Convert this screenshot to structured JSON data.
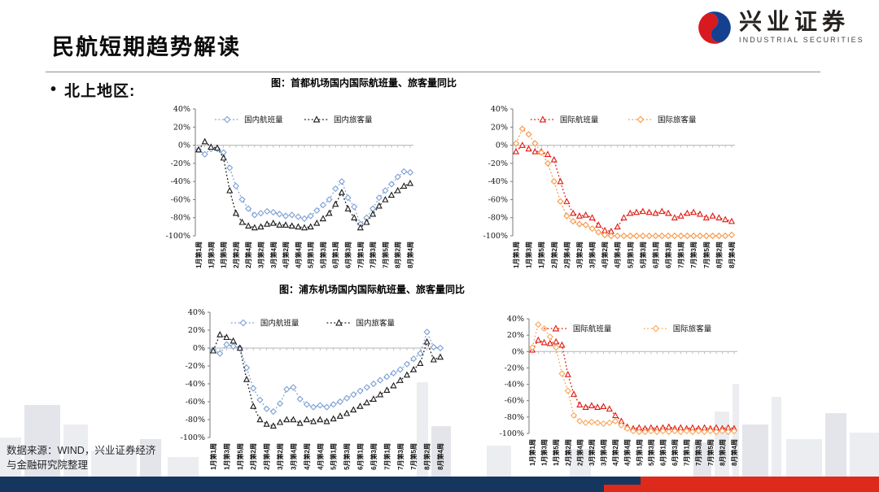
{
  "page": {
    "title": "民航短期趋势解读",
    "bullet": "北上地区:",
    "source_line1": "数据来源：WIND，兴业证券经济",
    "source_line2": "与金融研究院整理"
  },
  "logo": {
    "cn": "兴业证券",
    "en": "INDUSTRIAL SECURITIES",
    "swirl_red": "#d71920",
    "swirl_blue": "#15408f"
  },
  "captions": {
    "capital": "图：首都机场国内国际航班量、旅客量同比",
    "pudong": "图：浦东机场国内国际航班量、旅客量同比"
  },
  "footer": {
    "navy": "#15365f",
    "red": "#dd2a1b"
  },
  "chart_data": [
    {
      "type": "line",
      "title": "图：首都机场国内国际航班量、旅客量同比",
      "ylim": [
        -100,
        40
      ],
      "ytick_labels": [
        "40%",
        "20%",
        "0%",
        "-20%",
        "-40%",
        "-60%",
        "-80%",
        "-100%"
      ],
      "grid": false,
      "legend_position": "top-inside",
      "xtick_every": 2,
      "categories": [
        "1月第1周",
        "1月第2周",
        "1月第3周",
        "1月第4周",
        "1月第5周",
        "2月第1周",
        "2月第2周",
        "2月第3周",
        "2月第4周",
        "3月第1周",
        "3月第2周",
        "3月第3周",
        "3月第4周",
        "4月第1周",
        "4月第2周",
        "4月第3周",
        "4月第4周",
        "4月第5周",
        "5月第1周",
        "5月第2周",
        "5月第3周",
        "5月第4周",
        "6月第1周",
        "6月第2周",
        "6月第3周",
        "6月第4周",
        "7月第1周",
        "7月第2周",
        "7月第3周",
        "7月第4周",
        "7月第5周",
        "8月第1周",
        "8月第2周",
        "8月第3周",
        "8月第4周"
      ],
      "series": [
        {
          "name": "国内航班量",
          "marker": "diamond",
          "color": "#7c9fd4",
          "values": [
            -5,
            -10,
            -4,
            -4,
            -8,
            -25,
            -45,
            -60,
            -70,
            -77,
            -75,
            -73,
            -74,
            -76,
            -78,
            -77,
            -79,
            -81,
            -78,
            -72,
            -66,
            -60,
            -48,
            -40,
            -58,
            -68,
            -87,
            -80,
            -70,
            -58,
            -50,
            -43,
            -35,
            -29,
            -30
          ]
        },
        {
          "name": "国内旅客量",
          "marker": "triangle",
          "color": "#1a1a1a",
          "values": [
            -5,
            4,
            -2,
            -3,
            -14,
            -50,
            -75,
            -85,
            -89,
            -91,
            -90,
            -87,
            -86,
            -88,
            -88,
            -89,
            -90,
            -91,
            -90,
            -86,
            -81,
            -75,
            -65,
            -52,
            -70,
            -80,
            -91,
            -85,
            -76,
            -67,
            -60,
            -55,
            -50,
            -45,
            -42
          ]
        }
      ]
    },
    {
      "type": "line",
      "title": "图：首都机场国内国际航班量、旅客量同比",
      "ylim": [
        -100,
        40
      ],
      "ytick_labels": [
        "40%",
        "20%",
        "0%",
        "-20%",
        "-40%",
        "-60%",
        "-80%",
        "-100%"
      ],
      "grid": false,
      "legend_position": "top-inside",
      "xtick_every": 2,
      "categories": [
        "1月第1周",
        "1月第2周",
        "1月第3周",
        "1月第4周",
        "1月第5周",
        "2月第1周",
        "2月第2周",
        "2月第3周",
        "2月第4周",
        "3月第1周",
        "3月第2周",
        "3月第3周",
        "3月第4周",
        "4月第1周",
        "4月第2周",
        "4月第3周",
        "4月第4周",
        "4月第5周",
        "5月第1周",
        "5月第2周",
        "5月第3周",
        "5月第4周",
        "6月第1周",
        "6月第2周",
        "6月第3周",
        "6月第4周",
        "7月第1周",
        "7月第2周",
        "7月第3周",
        "7月第4周",
        "7月第5周",
        "8月第1周",
        "8月第2周",
        "8月第3周",
        "8月第4周"
      ],
      "series": [
        {
          "name": "国际航班量",
          "marker": "triangle",
          "color": "#e01910",
          "values": [
            -7,
            0,
            -4,
            -7,
            -7,
            -10,
            -16,
            -40,
            -62,
            -75,
            -78,
            -77,
            -80,
            -88,
            -94,
            -95,
            -90,
            -80,
            -75,
            -74,
            -73,
            -74,
            -75,
            -73,
            -75,
            -80,
            -78,
            -75,
            -74,
            -76,
            -80,
            -78,
            -80,
            -82,
            -84
          ]
        },
        {
          "name": "国际旅客量",
          "marker": "diamond",
          "color": "#f79646",
          "values": [
            2,
            18,
            12,
            2,
            -8,
            -20,
            -40,
            -62,
            -78,
            -84,
            -87,
            -88,
            -92,
            -96,
            -99,
            -100,
            -100,
            -100,
            -100,
            -100,
            -100,
            -100,
            -100,
            -100,
            -100,
            -100,
            -100,
            -100,
            -100,
            -100,
            -100,
            -100,
            -100,
            -100,
            -99
          ]
        }
      ]
    },
    {
      "type": "line",
      "title": "图：浦东机场国内国际航班量、旅客量同比",
      "ylim": [
        -100,
        40
      ],
      "ytick_labels": [
        "40%",
        "20%",
        "0%",
        "-20%",
        "-40%",
        "-60%",
        "-80%",
        "-100%"
      ],
      "grid": false,
      "legend_position": "top-inside",
      "xtick_every": 2,
      "categories": [
        "1月第1周",
        "1月第2周",
        "1月第3周",
        "1月第4周",
        "1月第5周",
        "2月第1周",
        "2月第2周",
        "2月第3周",
        "2月第4周",
        "3月第1周",
        "3月第2周",
        "3月第3周",
        "3月第4周",
        "4月第1周",
        "4月第2周",
        "4月第3周",
        "4月第4周",
        "4月第5周",
        "5月第1周",
        "5月第2周",
        "5月第3周",
        "5月第4周",
        "6月第1周",
        "6月第2周",
        "6月第3周",
        "6月第4周",
        "7月第1周",
        "7月第2周",
        "7月第3周",
        "7月第4周",
        "7月第5周",
        "8月第1周",
        "8月第2周",
        "8月第3周",
        "8月第4周"
      ],
      "series": [
        {
          "name": "国内航班量",
          "marker": "diamond",
          "color": "#7c9fd4",
          "values": [
            -2,
            -6,
            4,
            2,
            0,
            -22,
            -45,
            -58,
            -68,
            -71,
            -62,
            -46,
            -44,
            -57,
            -63,
            -66,
            -64,
            -66,
            -63,
            -60,
            -56,
            -52,
            -48,
            -44,
            -40,
            -36,
            -32,
            -28,
            -24,
            -18,
            -12,
            -6,
            18,
            1,
            0
          ]
        },
        {
          "name": "国内旅客量",
          "marker": "triangle",
          "color": "#1a1a1a",
          "values": [
            -3,
            15,
            12,
            8,
            0,
            -35,
            -65,
            -80,
            -85,
            -87,
            -83,
            -80,
            -80,
            -84,
            -80,
            -82,
            -80,
            -82,
            -79,
            -76,
            -73,
            -69,
            -65,
            -61,
            -57,
            -52,
            -47,
            -42,
            -36,
            -30,
            -24,
            -17,
            7,
            -13,
            -10
          ]
        }
      ]
    },
    {
      "type": "line",
      "title": "图：浦东机场国内国际航班量、旅客量同比",
      "ylim": [
        -100,
        40
      ],
      "ytick_labels": [
        "40%",
        "20%",
        "0%",
        "-20%",
        "-40%",
        "-60%",
        "-80%",
        "-100%"
      ],
      "grid": false,
      "legend_position": "top-inside",
      "xtick_every": 2,
      "categories": [
        "1月第1周",
        "1月第2周",
        "1月第3周",
        "1月第4周",
        "1月第5周",
        "2月第1周",
        "2月第2周",
        "2月第3周",
        "2月第4周",
        "3月第1周",
        "3月第2周",
        "3月第3周",
        "3月第4周",
        "4月第1周",
        "4月第2周",
        "4月第3周",
        "4月第4周",
        "4月第5周",
        "5月第1周",
        "5月第2周",
        "5月第3周",
        "5月第4周",
        "6月第1周",
        "6月第2周",
        "6月第3周",
        "6月第4周",
        "7月第1周",
        "7月第2周",
        "7月第3周",
        "7月第4周",
        "7月第5周",
        "8月第1周",
        "8月第2周",
        "8月第3周",
        "8月第4周"
      ],
      "series": [
        {
          "name": "国际航班量",
          "marker": "triangle",
          "color": "#e01910",
          "values": [
            2,
            14,
            11,
            10,
            12,
            8,
            -28,
            -52,
            -65,
            -68,
            -66,
            -68,
            -67,
            -70,
            -78,
            -85,
            -92,
            -94,
            -93,
            -94,
            -93,
            -94,
            -93,
            -92,
            -94,
            -93,
            -94,
            -93,
            -94,
            -93,
            -94,
            -93,
            -94,
            -93,
            -94
          ]
        },
        {
          "name": "国际旅客量",
          "marker": "diamond",
          "color": "#f9a65a",
          "values": [
            5,
            33,
            28,
            18,
            5,
            -27,
            -48,
            -78,
            -85,
            -87,
            -86,
            -87,
            -88,
            -87,
            -85,
            -90,
            -94,
            -97,
            -98,
            -98,
            -97,
            -98,
            -97,
            -98,
            -97,
            -98,
            -97,
            -98,
            -97,
            -98,
            -97,
            -98,
            -97,
            -98,
            -97
          ]
        }
      ]
    }
  ]
}
